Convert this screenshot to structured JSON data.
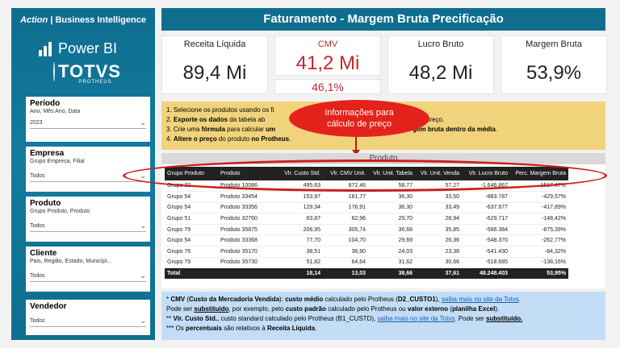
{
  "sidebar": {
    "brand_italic": "Action",
    "brand_sep": " | ",
    "brand_rest": "Business Intelligence",
    "powerbi_label": "Power BI",
    "totvs_label": "TOTVS",
    "totvs_sub": "PROTHEUS",
    "filters": [
      {
        "title": "Período",
        "subtitle": "Ano, Mês Ano, Data",
        "value": "2023"
      },
      {
        "title": "Empresa",
        "subtitle": "Grupo Empresa, Filial",
        "value": "Todos"
      },
      {
        "title": "Produto",
        "subtitle": "Grupo Produto, Produto",
        "value": "Todos"
      },
      {
        "title": "Cliente",
        "subtitle": "Pais, Região, Estado, Municípi...",
        "value": "Todos"
      },
      {
        "title": "Vendedor",
        "subtitle": "",
        "value": "Todos"
      }
    ]
  },
  "header": {
    "title": "Faturamento - Margem Bruta Precificação"
  },
  "kpis": {
    "receita": {
      "label": "Receita Líquida",
      "value": "89,4 Mi"
    },
    "cmv": {
      "label": "CMV",
      "value": "41,2 Mi",
      "pct": "46,1%"
    },
    "lucro": {
      "label": "Lucro Bruto",
      "value": "48,2 Mi"
    },
    "margem": {
      "label": "Margem Bruta",
      "value": "53,9%"
    }
  },
  "instructions": {
    "l1_a": "1. Selecione os produtos usando os fi",
    "l2_a": "2. ",
    "l2_b": "Exporte os dados",
    "l2_c": " da tabela ab",
    "l2_d": "onados ao preço.",
    "l3_a": "3. Crie uma ",
    "l3_b": "fórmula",
    "l3_c": " para calcular ",
    "l3_d": "um",
    "l3_e": "gem bruta dentro da média",
    "l3_f": ".",
    "l4_a": "4. ",
    "l4_b": "Altere o preço",
    "l4_c": " do produto ",
    "l4_d": "no Protheus",
    "l4_e": "."
  },
  "callout": {
    "line1": "Informações para",
    "line2": "cálculo de preço"
  },
  "table": {
    "section_label": "Produto",
    "columns": [
      "Grupo Produto",
      "Produto",
      "Vlr. Custo Std.",
      "Vlr. CMV Unit.",
      "Vlr. Unit. Tabela",
      "Vlr. Unit. Venda",
      "Vlr. Lucro Bruto",
      "Perc. Margem Bruta"
    ],
    "rows": [
      [
        "Grupo 32",
        "Produto 10086",
        "495,63",
        "872,46",
        "58,77",
        "57,27",
        "-1.646.867",
        "-1517,47%"
      ],
      [
        "Grupo 54",
        "Produto 33454",
        "153,97",
        "181,77",
        "36,30",
        "33,50",
        "-883.787",
        "-429,57%"
      ],
      [
        "Grupo 54",
        "Produto 33356",
        "129,34",
        "176,91",
        "36,30",
        "33,49",
        "-637.677",
        "-417,89%"
      ],
      [
        "Grupo 51",
        "Produto 32760",
        "63,87",
        "62,96",
        "29,70",
        "28,94",
        "-629.717",
        "-148,42%"
      ],
      [
        "Grupo 79",
        "Produto 35875",
        "206,95",
        "305,74",
        "36,68",
        "35,85",
        "-586.384",
        "-875,39%"
      ],
      [
        "Grupo 54",
        "Produto 33368",
        "77,70",
        "104,70",
        "29,69",
        "26,36",
        "-548.370",
        "-262,77%"
      ],
      [
        "Grupo 76",
        "Produto 35170",
        "38,51",
        "36,90",
        "24,03",
        "23,38",
        "-541.430",
        "-84,32%"
      ],
      [
        "Grupo 79",
        "Produto 35730",
        "51,82",
        "64,64",
        "31,62",
        "30,66",
        "-518.685",
        "-138,16%"
      ]
    ],
    "total": [
      "Total",
      "",
      "18,14",
      "13,03",
      "38,66",
      "37,61",
      "48.248.403",
      "53,95%"
    ]
  },
  "notes": {
    "n1_a": "* ",
    "n1_b": "CMV",
    "n1_c": " (",
    "n1_d": "Custo da Mercadoria Vendida",
    "n1_e": "): ",
    "n1_f": "custo médio",
    "n1_g": " calculado pelo Protheus (",
    "n1_h": "D2_CUSTO1",
    "n1_i": "), ",
    "n1_link": "saiba mais no site da Totvs",
    "n1_j": ".",
    "n2_a": "Pode ser ",
    "n2_b": "substituído",
    "n2_c": ", por exemplo, pelo ",
    "n2_d": "custo padrão",
    "n2_e": " calculado pelo Protheus ou ",
    "n2_f": "valor externo",
    "n2_g": " (",
    "n2_h": "planilha Excel",
    "n2_i": ").",
    "n3_a": "** ",
    "n3_b": "Vlr. Custo Std.",
    "n3_c": ", custo standard calculado pelo Protheus (B1_CUSTD), ",
    "n3_link": "saiba mais no site da Totvs",
    "n3_d": ". Pode ser ",
    "n3_e": "substituído.",
    "n4_a": "*** Os ",
    "n4_b": "percentuais",
    "n4_c": " são relativos à ",
    "n4_d": "Receita Líquida",
    "n4_e": "."
  },
  "colors": {
    "header_blue": "#0f6e8e",
    "cmv_red": "#c0282e",
    "callout_red": "#e3231b",
    "instructions_bg": "#f1d37c",
    "notes_bg": "#c3ddf6"
  }
}
